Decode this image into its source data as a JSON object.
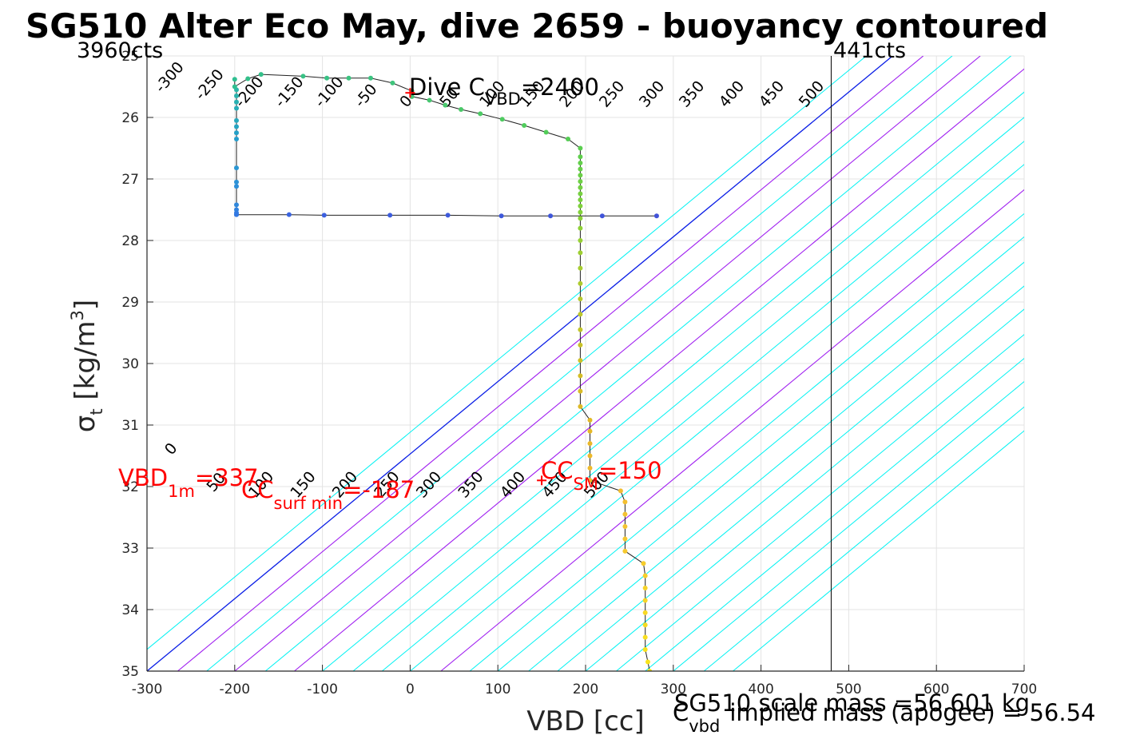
{
  "chart_data": {
    "type": "scatter",
    "title": "SG510 Alter Eco May, dive 2659 - buoyancy contoured",
    "xlabel": "VBD [cc]",
    "ylabel_main": "σ",
    "ylabel_sub": "t",
    "ylabel_unit": "[kg/m",
    "ylabel_sup": "3",
    "ylabel_close": "]",
    "xlim": [
      -300,
      700
    ],
    "ylim": [
      25,
      35
    ],
    "y_reversed": true,
    "grid": true,
    "x_ticks": [
      "-300",
      "-200",
      "-100",
      "0",
      "100",
      "200",
      "300",
      "400",
      "500",
      "600",
      "700"
    ],
    "y_ticks": [
      "25",
      "26",
      "27",
      "28",
      "29",
      "30",
      "31",
      "32",
      "33",
      "34",
      "35"
    ],
    "upper_contour_values": [
      "-300",
      "-250",
      "-200",
      "-150",
      "-100",
      "-50",
      "0",
      "50",
      "100",
      "150",
      "200",
      "250",
      "300",
      "350",
      "400",
      "450",
      "500"
    ],
    "lower_contour_values": [
      "0",
      "50",
      "100",
      "150",
      "200",
      "250",
      "300",
      "350",
      "400",
      "450",
      "500"
    ],
    "contour_line_x_at_sigma35": [
      -330,
      -300,
      -265,
      -232,
      -200,
      -165,
      -132,
      -100,
      -65,
      -32,
      0,
      35,
      68,
      100,
      135,
      168,
      200,
      235,
      268,
      300,
      335,
      368
    ],
    "contour_slope_cc_per_sigma": 85,
    "highlighted_contours": {
      "blue_x_at_sigma35": [
        -300
      ],
      "purple_x_at_sigma35": [
        -265,
        -200,
        -132,
        35
      ]
    },
    "left_counts_label": "3960cts",
    "right_counts_label": "441cts",
    "right_counts_vbd": 480,
    "dive_label": "Dive C",
    "dive_sub": "VBD",
    "dive_value": "=2400",
    "dive_marker": {
      "x": 0,
      "y": 25.6
    },
    "vbd1m_main": "VBD",
    "vbd1m_sub": "1m",
    "vbd1m_value": "=337",
    "ccsurf_main": "CC",
    "ccsurf_sub": "surf min",
    "ccsurf_value": "=-187",
    "ccsm_main": "CC",
    "ccsm_sub": "SM",
    "ccsm_value": "=150",
    "ccsm_marker": {
      "x": 150,
      "y": 31.9
    },
    "scale_mass_text": "SG510 scale mass =56.601 kg",
    "implied_main": "C",
    "implied_sub": "vbd",
    "implied_text": "implied mass (apogee) = 56.54",
    "trajectory": [
      {
        "x": -200,
        "y": 25.38,
        "c": "#2fbf91"
      },
      {
        "x": -200,
        "y": 25.5,
        "c": "#2fbf91"
      },
      {
        "x": -185,
        "y": 25.37,
        "c": "#34c08a"
      },
      {
        "x": -170,
        "y": 25.3,
        "c": "#34c08a"
      },
      {
        "x": -122,
        "y": 25.33,
        "c": "#38c285"
      },
      {
        "x": -95,
        "y": 25.36,
        "c": "#38c285"
      },
      {
        "x": -70,
        "y": 25.36,
        "c": "#3cc380"
      },
      {
        "x": -45,
        "y": 25.36,
        "c": "#3cc380"
      },
      {
        "x": -20,
        "y": 25.44,
        "c": "#40c57c"
      },
      {
        "x": 2,
        "y": 25.57,
        "c": "#42c678"
      },
      {
        "x": 2,
        "y": 25.66,
        "c": "#44c674"
      },
      {
        "x": 22,
        "y": 25.72,
        "c": "#46c770"
      },
      {
        "x": 40,
        "y": 25.8,
        "c": "#48c86c"
      },
      {
        "x": 58,
        "y": 25.87,
        "c": "#4ac968"
      },
      {
        "x": 80,
        "y": 25.94,
        "c": "#4cca64"
      },
      {
        "x": 105,
        "y": 26.03,
        "c": "#4ecb60"
      },
      {
        "x": 130,
        "y": 26.13,
        "c": "#50cc5c"
      },
      {
        "x": 155,
        "y": 26.24,
        "c": "#52cd58"
      },
      {
        "x": 180,
        "y": 26.35,
        "c": "#55cd54"
      },
      {
        "x": 194,
        "y": 26.5,
        "c": "#5ace4f"
      },
      {
        "x": 194,
        "y": 26.64,
        "c": "#5ecf4c"
      },
      {
        "x": 194,
        "y": 26.74,
        "c": "#62cf4a"
      },
      {
        "x": 194,
        "y": 26.84,
        "c": "#66cf48"
      },
      {
        "x": 194,
        "y": 26.94,
        "c": "#6ad046"
      },
      {
        "x": 194,
        "y": 27.04,
        "c": "#6ed044"
      },
      {
        "x": 194,
        "y": 27.14,
        "c": "#72d042"
      },
      {
        "x": 194,
        "y": 27.24,
        "c": "#76d040"
      },
      {
        "x": 194,
        "y": 27.34,
        "c": "#7ad13e"
      },
      {
        "x": 194,
        "y": 27.44,
        "c": "#7ed13c"
      },
      {
        "x": 194,
        "y": 27.54,
        "c": "#82d13a"
      },
      {
        "x": 194,
        "y": 27.64,
        "c": "#88d138"
      },
      {
        "x": 194,
        "y": 27.8,
        "c": "#8ed136"
      },
      {
        "x": 194,
        "y": 28.0,
        "c": "#96d034"
      },
      {
        "x": 194,
        "y": 28.2,
        "c": "#9ecf32"
      },
      {
        "x": 194,
        "y": 28.45,
        "c": "#a6cd30"
      },
      {
        "x": 194,
        "y": 28.7,
        "c": "#aecb2e"
      },
      {
        "x": 194,
        "y": 28.95,
        "c": "#b6c92c"
      },
      {
        "x": 194,
        "y": 29.2,
        "c": "#bcc72a"
      },
      {
        "x": 194,
        "y": 29.45,
        "c": "#c2c529"
      },
      {
        "x": 194,
        "y": 29.7,
        "c": "#c8c228"
      },
      {
        "x": 194,
        "y": 29.95,
        "c": "#cec027"
      },
      {
        "x": 194,
        "y": 30.2,
        "c": "#d4bd26"
      },
      {
        "x": 194,
        "y": 30.45,
        "c": "#d9bb26"
      },
      {
        "x": 194,
        "y": 30.7,
        "c": "#ddb926"
      },
      {
        "x": 205,
        "y": 30.92,
        "c": "#e2b826"
      },
      {
        "x": 205,
        "y": 31.1,
        "c": "#e6b826"
      },
      {
        "x": 205,
        "y": 31.3,
        "c": "#eab828"
      },
      {
        "x": 205,
        "y": 31.5,
        "c": "#edb92a"
      },
      {
        "x": 205,
        "y": 31.7,
        "c": "#efba2c"
      },
      {
        "x": 205,
        "y": 31.9,
        "c": "#f0bb2e"
      },
      {
        "x": 240,
        "y": 32.07,
        "c": "#f2bd30"
      },
      {
        "x": 245,
        "y": 32.25,
        "c": "#f3bf30"
      },
      {
        "x": 245,
        "y": 32.45,
        "c": "#f4c230"
      },
      {
        "x": 245,
        "y": 32.65,
        "c": "#f5c430"
      },
      {
        "x": 245,
        "y": 32.85,
        "c": "#f5c72f"
      },
      {
        "x": 245,
        "y": 33.05,
        "c": "#f6c92e"
      },
      {
        "x": 266,
        "y": 33.25,
        "c": "#f6cc2c"
      },
      {
        "x": 268,
        "y": 33.45,
        "c": "#f6cf2a"
      },
      {
        "x": 268,
        "y": 33.65,
        "c": "#f6d228"
      },
      {
        "x": 268,
        "y": 33.85,
        "c": "#f7d526"
      },
      {
        "x": 268,
        "y": 34.05,
        "c": "#f7d824"
      },
      {
        "x": 268,
        "y": 34.25,
        "c": "#f7db22"
      },
      {
        "x": 268,
        "y": 34.45,
        "c": "#f8de20"
      },
      {
        "x": 268,
        "y": 34.65,
        "c": "#f8e11e"
      },
      {
        "x": 271,
        "y": 34.85,
        "c": "#f9e41c"
      },
      {
        "x": 273,
        "y": 35.0,
        "c": "#f9e71a"
      }
    ],
    "descent_branch": [
      {
        "x": -198,
        "y": 25.55,
        "c": "#2ab7a8"
      },
      {
        "x": -198,
        "y": 25.65,
        "c": "#2ab3ad"
      },
      {
        "x": -198,
        "y": 25.75,
        "c": "#29b0b2"
      },
      {
        "x": -198,
        "y": 25.85,
        "c": "#28acb8"
      },
      {
        "x": -198,
        "y": 26.05,
        "c": "#27a8bd"
      },
      {
        "x": -198,
        "y": 26.15,
        "c": "#26a4c2"
      },
      {
        "x": -198,
        "y": 26.25,
        "c": "#25a0c7"
      },
      {
        "x": -198,
        "y": 26.35,
        "c": "#249ccc"
      },
      {
        "x": -198,
        "y": 26.82,
        "c": "#2a96d2"
      },
      {
        "x": -198,
        "y": 27.05,
        "c": "#2c92d6"
      },
      {
        "x": -198,
        "y": 27.12,
        "c": "#2e8fd9"
      },
      {
        "x": -198,
        "y": 27.42,
        "c": "#3088dc"
      },
      {
        "x": -198,
        "y": 27.5,
        "c": "#3182de"
      },
      {
        "x": -198,
        "y": 27.55,
        "c": "#327de0"
      },
      {
        "x": -198,
        "y": 27.58,
        "c": "#3378e2"
      }
    ],
    "surface_branch": [
      {
        "x": -198,
        "y": 27.58,
        "c": "#3378e2"
      },
      {
        "x": -138,
        "y": 27.58,
        "c": "#3a64e0"
      },
      {
        "x": -98,
        "y": 27.59,
        "c": "#3b5fdf"
      },
      {
        "x": -23,
        "y": 27.59,
        "c": "#3c5cdd"
      },
      {
        "x": 43,
        "y": 27.59,
        "c": "#3d5adc"
      },
      {
        "x": 104,
        "y": 27.6,
        "c": "#3e58db"
      },
      {
        "x": 160,
        "y": 27.6,
        "c": "#3f56da"
      },
      {
        "x": 219,
        "y": 27.6,
        "c": "#4054d9"
      },
      {
        "x": 281,
        "y": 27.6,
        "c": "#4152d8"
      }
    ]
  }
}
